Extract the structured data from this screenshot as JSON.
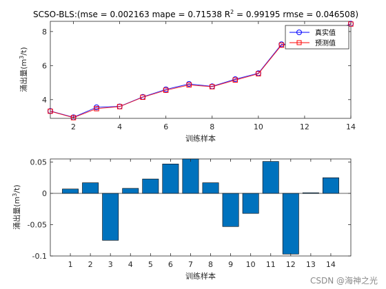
{
  "colors": {
    "series_true": "#0000ff",
    "series_pred": "#ff0000",
    "line": "#7f007f",
    "bar": "#0072bd",
    "axis": "#262626"
  },
  "watermark": "CSDN @海神之光",
  "chart_data": [
    {
      "type": "line",
      "title": "SCSO-BLS:(mse = 0.002163 mape = 0.71538  R",
      "title_sup": "2",
      "title_rest": " = 0.99195 rmse = 0.046508)",
      "xlabel": "训练样本",
      "ylabel": "涌出量(m",
      "ylabel_sup": "3",
      "ylabel_rest": "/t)",
      "xlim": [
        1,
        14
      ],
      "ylim": [
        2.9,
        8.6
      ],
      "xticks": [
        2,
        4,
        6,
        8,
        10,
        12,
        14
      ],
      "yticks": [
        4,
        6,
        8
      ],
      "x": [
        1,
        2,
        3,
        4,
        5,
        6,
        7,
        8,
        9,
        10,
        11,
        12,
        13,
        14
      ],
      "legend": [
        "真实值",
        "预测值"
      ],
      "legend_position": "top-right",
      "grid": false,
      "series": [
        {
          "name": "真实值",
          "marker": "circle",
          "values": [
            3.33,
            2.96,
            3.55,
            3.6,
            4.16,
            4.6,
            4.92,
            4.78,
            5.2,
            5.55,
            7.25,
            7.25,
            7.85,
            8.46
          ]
        },
        {
          "name": "预测值",
          "marker": "square",
          "values": [
            3.32,
            2.94,
            3.47,
            3.59,
            4.14,
            4.55,
            4.86,
            4.76,
            5.15,
            5.52,
            7.2,
            7.35,
            7.85,
            8.44
          ]
        }
      ]
    },
    {
      "type": "bar",
      "xlabel": "训练样本",
      "ylabel": "涌出量(m",
      "ylabel_sup": "3",
      "ylabel_rest": "/t)",
      "xlim": [
        0,
        15
      ],
      "ylim": [
        -0.1,
        0.055
      ],
      "xticks": [
        1,
        2,
        3,
        4,
        5,
        6,
        7,
        8,
        9,
        10,
        11,
        12,
        13,
        14
      ],
      "yticks": [
        0.05,
        0,
        -0.05,
        -0.1
      ],
      "ytick_labels": [
        "0.05",
        "0",
        "-0.05",
        "-0.1"
      ],
      "grid": false,
      "categories": [
        1,
        2,
        3,
        4,
        5,
        6,
        7,
        8,
        9,
        10,
        11,
        12,
        13,
        14
      ],
      "values": [
        0.007,
        0.017,
        -0.075,
        0.008,
        0.023,
        0.047,
        0.056,
        0.017,
        -0.053,
        -0.032,
        0.051,
        -0.097,
        0.001,
        0.025
      ]
    }
  ]
}
